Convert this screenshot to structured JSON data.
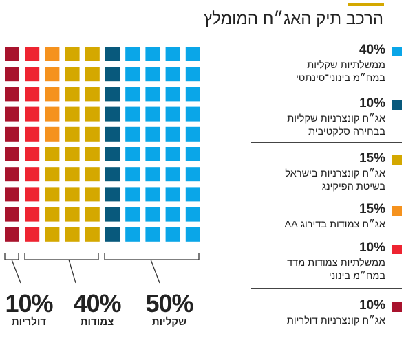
{
  "title": "הרכב תיק האג״ח המומלץ",
  "colors": {
    "accent": "#d4a800",
    "light_blue": "#0aa6e8",
    "dark_teal": "#08597c",
    "gold": "#d4a800",
    "orange": "#f5921e",
    "red": "#ee2431",
    "dark_red": "#a8132d"
  },
  "legend": [
    {
      "pct": "40%",
      "label": "ממשלתיות שקליות\nבמח״מ בינוני־סינתטי",
      "color": "#0aa6e8"
    },
    {
      "pct": "10%",
      "label": "אג״ח קונצרניות שקליות\nבבחירה סלקטיבית",
      "color": "#08597c"
    },
    {
      "pct": "15%",
      "label": "אג״ח קונצרניות בישראל\nבשיטת הפיקינג",
      "color": "#d4a800"
    },
    {
      "pct": "15%",
      "label": "אג״ח צמודות בדירוג AA",
      "color": "#f5921e"
    },
    {
      "pct": "10%",
      "label": "ממשלתיות צמודות מדד\nבמח״מ בינוני",
      "color": "#ee2431"
    },
    {
      "pct": "10%",
      "label": "אג״ח קונצרניות דולריות",
      "color": "#a8132d"
    }
  ],
  "groups": [
    {
      "pct": "50%",
      "label": "שקליות"
    },
    {
      "pct": "40%",
      "label": "צמודות"
    },
    {
      "pct": "10%",
      "label": "דולריות"
    }
  ],
  "chart_data": {
    "type": "waffle",
    "title": "הרכב תיק האג״ח המומלץ",
    "grid_rows": 10,
    "grid_cols": 10,
    "unit_value_percent": 1,
    "series": [
      {
        "name": "ממשלתיות שקליות במח״מ בינוני־סינתטי",
        "value": 40,
        "columns": 4,
        "color": "#0aa6e8"
      },
      {
        "name": "אג״ח קונצרניות שקליות בבחירה סלקטיבית",
        "value": 10,
        "columns": 1,
        "color": "#08597c"
      },
      {
        "name": "אג״ח קונצרניות בישראל בשיטת הפיקינג",
        "value": 15,
        "columns": 1.5,
        "color": "#d4a800"
      },
      {
        "name": "אג״ח צמודות בדירוג AA",
        "value": 15,
        "columns": 1.5,
        "color": "#f5921e"
      },
      {
        "name": "ממשלתיות צמודות מדד במח״מ בינוני",
        "value": 10,
        "columns": 1,
        "color": "#ee2431"
      },
      {
        "name": "אג״ח קונצרניות דולריות",
        "value": 10,
        "columns": 1,
        "color": "#a8132d"
      }
    ],
    "column_colors_left_to_right": [
      "#a8132d",
      "#ee2431",
      "#f5921e",
      "#d4a800",
      "#d4a800",
      "#08597c",
      "#0aa6e8",
      "#0aa6e8",
      "#0aa6e8",
      "#0aa6e8"
    ],
    "column_split": {
      "col_index": 2,
      "top_rows_color": "#f5921e",
      "top_rows": 5,
      "bottom_color": "#d4a800"
    },
    "groups": [
      {
        "label": "שקליות",
        "value": 50
      },
      {
        "label": "צמודות",
        "value": 40
      },
      {
        "label": "דולריות",
        "value": 10
      }
    ]
  }
}
